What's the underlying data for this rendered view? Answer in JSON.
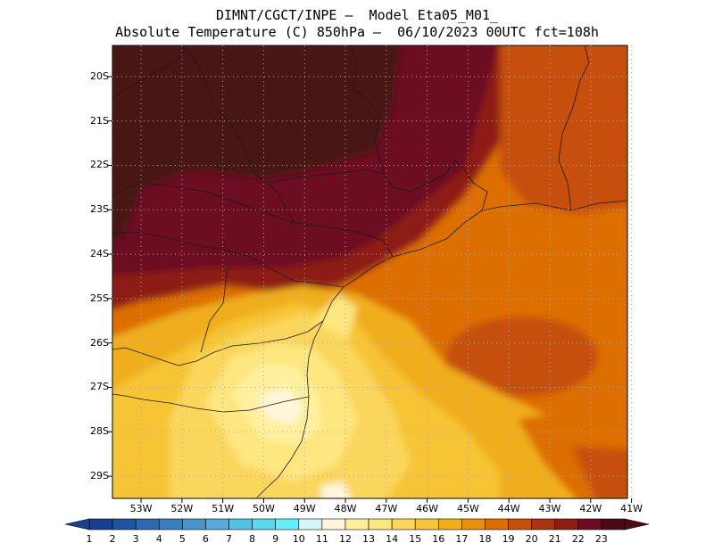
{
  "header": {
    "line1": "DIMNT/CGCT/INPE –  Model Eta05_M01_",
    "line2": "Absolute Temperature (C) 850hPa –  06/10/2023 00UTC fct=108h"
  },
  "axes": {
    "lat_labels": [
      "20S",
      "21S",
      "22S",
      "23S",
      "24S",
      "25S",
      "26S",
      "27S",
      "28S",
      "29S"
    ],
    "lon_labels": [
      "53W",
      "52W",
      "51W",
      "50W",
      "49W",
      "48W",
      "47W",
      "46W",
      "45W",
      "44W",
      "43W",
      "42W",
      "41W"
    ],
    "lat_values": [
      -20,
      -21,
      -22,
      -23,
      -24,
      -25,
      -26,
      -27,
      -28,
      -29
    ],
    "lon_values": [
      -53,
      -52,
      -51,
      -50,
      -49,
      -48,
      -47,
      -46,
      -45,
      -44,
      -43,
      -42,
      -41
    ],
    "lat_range": [
      -29.5,
      -19.3
    ],
    "lon_range": [
      -53.7,
      -41.1
    ],
    "grid": "dotted"
  },
  "colorbar": {
    "labels": [
      "1",
      "2",
      "3",
      "4",
      "5",
      "6",
      "7",
      "8",
      "9",
      "10",
      "11",
      "12",
      "13",
      "14",
      "15",
      "16",
      "17",
      "18",
      "19",
      "20",
      "21",
      "22",
      "23"
    ],
    "colors": [
      "#1a3f8f",
      "#2154a0",
      "#2c69b0",
      "#3a7fbf",
      "#4a94cc",
      "#5aa9d8",
      "#55c2e3",
      "#5ad8ec",
      "#66eefc",
      "#d6f6fa",
      "#fff6dc",
      "#fff0a0",
      "#fee680",
      "#fbd65c",
      "#f6c436",
      "#f0ae1a",
      "#e8900c",
      "#dd6e06",
      "#c65008",
      "#a83410",
      "#8e1e14",
      "#6c0c20",
      "#4a0a18"
    ],
    "arrows": "both"
  },
  "map": {
    "field": "Absolute Temperature (C) 850hPa",
    "dominant_colors": {
      "northwest": "#4a1418",
      "north_center": "#6c0c20",
      "east": "#dd6e06",
      "southeast_core": "#c65008",
      "south_coast": "#fff0a0",
      "south_inland": "#f6c436"
    }
  }
}
